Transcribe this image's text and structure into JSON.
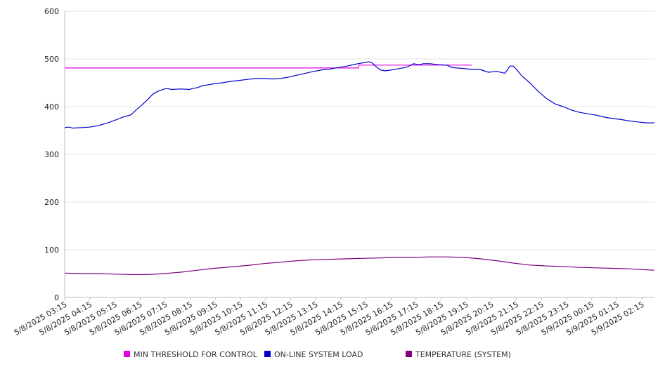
{
  "chart_data": {
    "type": "line",
    "ylim": [
      0,
      600
    ],
    "yticks": [
      0,
      100,
      200,
      300,
      400,
      500,
      600
    ],
    "grid": true,
    "legend_position": "bottom",
    "x_tick_labels": [
      "5/8/2025 03:15",
      "5/8/2025 04:15",
      "5/8/2025 05:15",
      "5/8/2025 06:15",
      "5/8/2025 07:15",
      "5/8/2025 08:15",
      "5/8/2025 09:15",
      "5/8/2025 10:15",
      "5/8/2025 11:15",
      "5/8/2025 12:15",
      "5/8/2025 13:15",
      "5/8/2025 14:15",
      "5/8/2025 15:15",
      "5/8/2025 16:15",
      "5/8/2025 17:15",
      "5/8/2025 18:15",
      "5/8/2025 19:15",
      "5/8/2025 20:15",
      "5/8/2025 21:15",
      "5/8/2025 22:15",
      "5/8/2025 23:15",
      "5/9/2025 00:15",
      "5/9/2025 01:15",
      "5/9/2025 02:15"
    ],
    "series": [
      {
        "name": "MIN THRESHOLD FOR CONTROL",
        "color": "#e400e4",
        "points": [
          [
            0,
            481
          ],
          [
            17.7,
            481
          ],
          [
            17.7,
            487
          ],
          [
            24.5,
            487
          ]
        ]
      },
      {
        "name": "ON-LINE SYSTEM LOAD",
        "color": "#0000cc",
        "points": [
          [
            0,
            356
          ],
          [
            0.25,
            357
          ],
          [
            0.5,
            355
          ],
          [
            1,
            356
          ],
          [
            1.5,
            357
          ],
          [
            2,
            360
          ],
          [
            2.5,
            365
          ],
          [
            3,
            371
          ],
          [
            3.5,
            378
          ],
          [
            4,
            383
          ],
          [
            4.3,
            393
          ],
          [
            4.7,
            405
          ],
          [
            5,
            415
          ],
          [
            5.3,
            426
          ],
          [
            5.6,
            432
          ],
          [
            6,
            437
          ],
          [
            6.2,
            438
          ],
          [
            6.4,
            436
          ],
          [
            7,
            437
          ],
          [
            7.5,
            436
          ],
          [
            7.7,
            438
          ],
          [
            8,
            440
          ],
          [
            8.3,
            444
          ],
          [
            8.7,
            446
          ],
          [
            9,
            448
          ],
          [
            9.5,
            450
          ],
          [
            10,
            453
          ],
          [
            10.5,
            455
          ],
          [
            11,
            457
          ],
          [
            11.5,
            459
          ],
          [
            12,
            459
          ],
          [
            12.5,
            458
          ],
          [
            13,
            459
          ],
          [
            13.5,
            462
          ],
          [
            14,
            466
          ],
          [
            14.5,
            470
          ],
          [
            15,
            474
          ],
          [
            15.5,
            477
          ],
          [
            16,
            479
          ],
          [
            16.5,
            482
          ],
          [
            17,
            485
          ],
          [
            17.5,
            489
          ],
          [
            18,
            492
          ],
          [
            18.3,
            494
          ],
          [
            18.5,
            492
          ],
          [
            18.8,
            482
          ],
          [
            19,
            477
          ],
          [
            19.3,
            475
          ],
          [
            19.7,
            477
          ],
          [
            20,
            479
          ],
          [
            20.5,
            482
          ],
          [
            20.8,
            486
          ],
          [
            21,
            490
          ],
          [
            21.3,
            488
          ],
          [
            21.6,
            490
          ],
          [
            22,
            490
          ],
          [
            22.5,
            488
          ],
          [
            23,
            487
          ],
          [
            23.3,
            482
          ],
          [
            23.6,
            481
          ],
          [
            24,
            480
          ],
          [
            24.5,
            478
          ],
          [
            25,
            478
          ],
          [
            25.5,
            472
          ],
          [
            26,
            474
          ],
          [
            26.5,
            470
          ],
          [
            26.8,
            485
          ],
          [
            27,
            485
          ],
          [
            27.2,
            478
          ],
          [
            27.5,
            465
          ],
          [
            28,
            450
          ],
          [
            28.5,
            432
          ],
          [
            29,
            417
          ],
          [
            29.5,
            406
          ],
          [
            30,
            400
          ],
          [
            30.5,
            393
          ],
          [
            31,
            388
          ],
          [
            31.5,
            385
          ],
          [
            32,
            382
          ],
          [
            32.5,
            378
          ],
          [
            33,
            375
          ],
          [
            33.5,
            373
          ],
          [
            34,
            370
          ],
          [
            34.5,
            368
          ],
          [
            35,
            366
          ],
          [
            35.5,
            366
          ]
        ]
      },
      {
        "name": "TEMPERATURE (SYSTEM)",
        "color": "#800080",
        "points": [
          [
            0,
            51
          ],
          [
            1,
            50
          ],
          [
            2,
            50
          ],
          [
            3,
            49
          ],
          [
            4,
            48
          ],
          [
            5,
            48
          ],
          [
            6,
            50
          ],
          [
            7,
            53
          ],
          [
            8,
            57
          ],
          [
            9,
            61
          ],
          [
            10,
            64
          ],
          [
            11,
            67
          ],
          [
            12,
            71
          ],
          [
            13,
            74
          ],
          [
            14,
            77
          ],
          [
            15,
            79
          ],
          [
            16,
            80
          ],
          [
            17,
            81
          ],
          [
            18,
            82
          ],
          [
            19,
            83
          ],
          [
            20,
            84
          ],
          [
            21,
            84
          ],
          [
            22,
            85
          ],
          [
            23,
            85
          ],
          [
            24,
            84
          ],
          [
            25,
            81
          ],
          [
            26,
            77
          ],
          [
            27,
            72
          ],
          [
            28,
            68
          ],
          [
            29,
            66
          ],
          [
            30,
            65
          ],
          [
            31,
            63
          ],
          [
            32,
            62
          ],
          [
            33,
            61
          ],
          [
            34,
            60
          ],
          [
            35,
            58
          ],
          [
            35.5,
            57
          ]
        ]
      }
    ]
  }
}
